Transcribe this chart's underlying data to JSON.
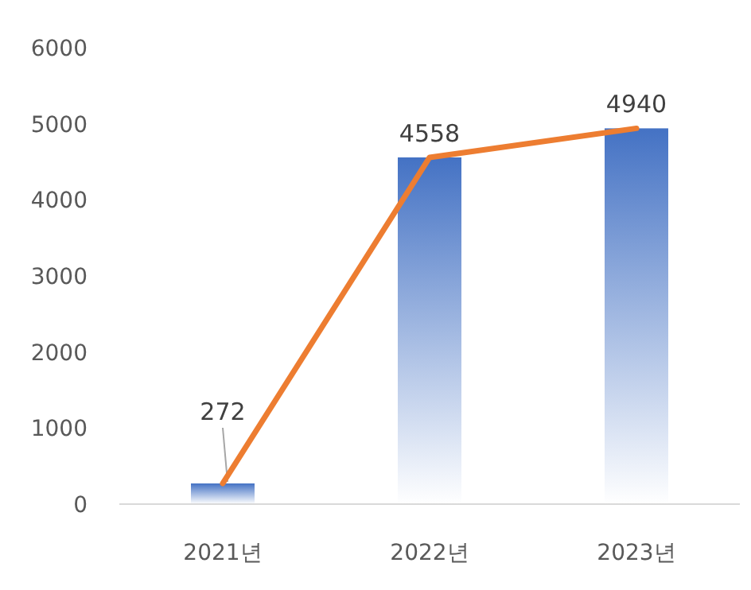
{
  "chart_data": {
    "type": "bar",
    "categories": [
      "2021년",
      "2022년",
      "2023년"
    ],
    "series": [
      {
        "color": "#4472c4",
        "values": [
          272,
          4558,
          4940
        ]
      },
      {
        "type": "line",
        "color": "#ed7d31",
        "values": [
          272,
          4558,
          4940
        ],
        "value_labels": [
          null,
          null,
          null
        ]
      }
    ],
    "ylim": [
      0,
      6000
    ],
    "yticks": [
      0,
      1000,
      2000,
      3000,
      4000,
      5000,
      6000
    ],
    "data_labels": true,
    "grid": false,
    "marker": "none",
    "line_style": "solid"
  }
}
